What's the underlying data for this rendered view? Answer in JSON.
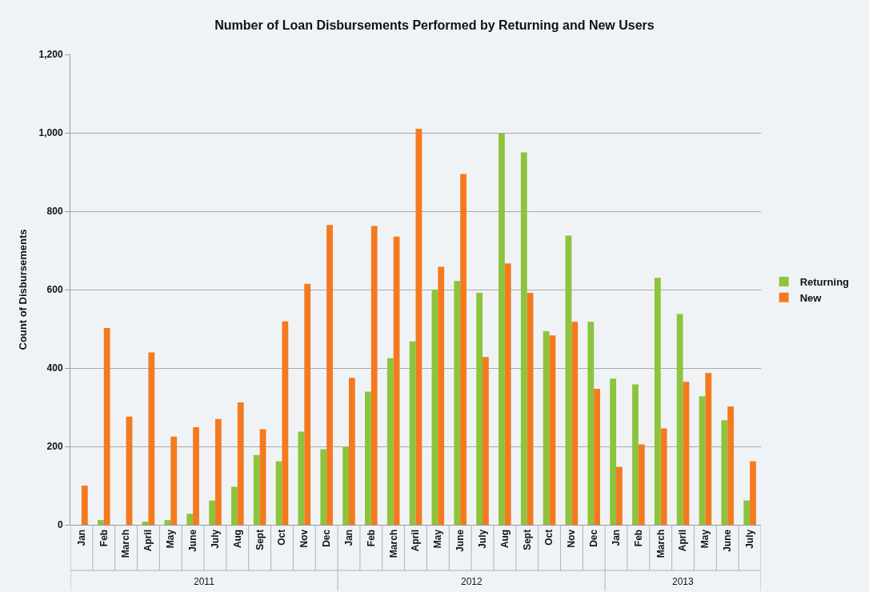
{
  "chart_data": {
    "type": "bar",
    "title": "Number of Loan Disbursements Performed by Returning and New Users",
    "ylabel": "Count of Disbursements",
    "categories": [
      "Jan",
      "Feb",
      "March",
      "April",
      "May",
      "June",
      "July",
      "Aug",
      "Sept",
      "Oct",
      "Nov",
      "Dec",
      "Jan",
      "Feb",
      "March",
      "April",
      "May",
      "June",
      "July",
      "Aug",
      "Sept",
      "Oct",
      "Nov",
      "Dec",
      "Jan",
      "Feb",
      "March",
      "April",
      "May",
      "June",
      "July"
    ],
    "annotations": [
      "2011",
      "2012",
      "2013"
    ],
    "series": [
      {
        "name": "Returning",
        "color": "#8cc43c",
        "values": [
          0,
          12,
          0,
          8,
          12,
          28,
          62,
          97,
          178,
          162,
          238,
          193,
          200,
          340,
          425,
          468,
          600,
          622,
          592,
          998,
          950,
          494,
          738,
          518,
          373,
          358,
          630,
          538,
          328,
          267,
          62
        ]
      },
      {
        "name": "New",
        "color": "#f47a1f",
        "values": [
          100,
          502,
          276,
          440,
          225,
          249,
          270,
          312,
          244,
          519,
          615,
          765,
          375,
          762,
          735,
          1010,
          658,
          895,
          428,
          667,
          592,
          483,
          518,
          347,
          148,
          205,
          246,
          365,
          387,
          302,
          162
        ]
      }
    ],
    "ylim": [
      0,
      1200
    ],
    "yticks": [
      0,
      200,
      400,
      600,
      800,
      {
        "value": 1000,
        "label": "1,000"
      },
      {
        "value": 1200,
        "label": "1,200"
      }
    ],
    "grid": "y",
    "legend": "right"
  }
}
